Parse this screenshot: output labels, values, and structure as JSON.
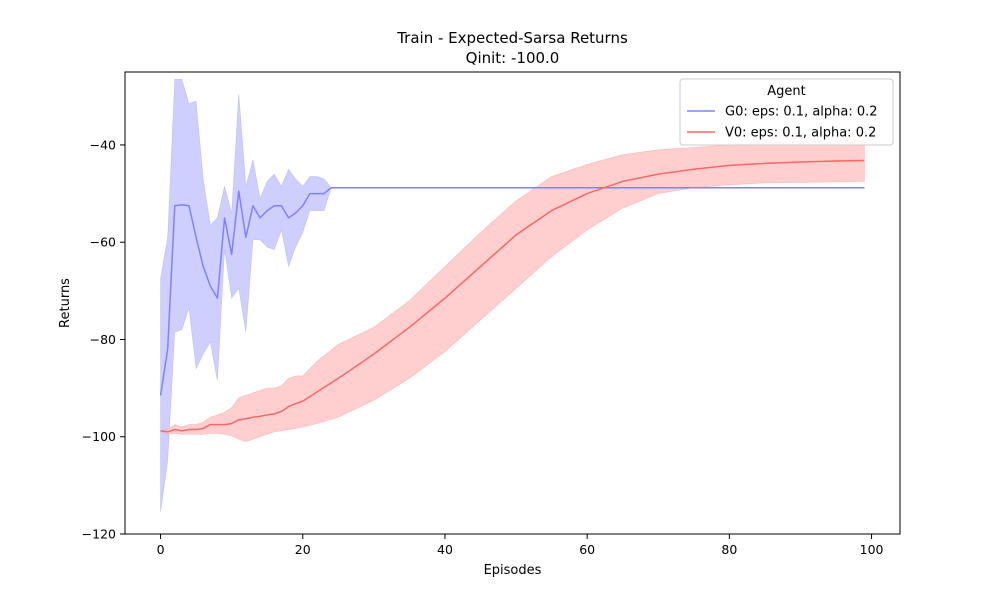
{
  "chart_data": {
    "type": "line",
    "title": "Train - Expected-Sarsa Returns",
    "subtitle": "Qinit: -100.0",
    "xlabel": "Episodes",
    "ylabel": "Returns",
    "xlim": [
      -5,
      104
    ],
    "ylim": [
      -120,
      -25
    ],
    "xticks": [
      0,
      20,
      40,
      60,
      80,
      100
    ],
    "yticks": [
      -120,
      -100,
      -80,
      -60,
      -40
    ],
    "grid": false,
    "legend": {
      "title": "Agent",
      "placement": "top-right"
    },
    "series": [
      {
        "name": "G0: eps: 0.1, alpha: 0.2",
        "color": "#8080ff",
        "band_color": "#ccccff",
        "x": [
          0,
          1,
          2,
          3,
          4,
          5,
          6,
          7,
          8,
          9,
          10,
          11,
          12,
          13,
          14,
          15,
          16,
          17,
          18,
          19,
          20,
          21,
          22,
          23,
          24,
          25,
          30,
          40,
          50,
          60,
          70,
          80,
          90,
          99
        ],
        "mean": [
          -91.5,
          -82,
          -52.5,
          -52.3,
          -52.5,
          -59,
          -65,
          -69,
          -71.5,
          -55,
          -62.5,
          -49.5,
          -59,
          -52.5,
          -55,
          -53.5,
          -52.5,
          -52.5,
          -55,
          -54,
          -52.5,
          -50,
          -50,
          -50,
          -48.8,
          -48.8,
          -48.8,
          -48.8,
          -48.8,
          -48.8,
          -48.8,
          -48.8,
          -48.8,
          -48.8
        ],
        "upper": [
          -67.5,
          -59,
          -26.5,
          -26.5,
          -31.5,
          -31,
          -47,
          -56.5,
          -55,
          -48.5,
          -54,
          -29.5,
          -48.5,
          -43,
          -51,
          -47.5,
          -46,
          -48.5,
          -45,
          -47,
          -48.5,
          -46.5,
          -46.5,
          -47,
          -48.8,
          -48.8,
          -48.8,
          -48.8,
          -48.8,
          -48.8,
          -48.8,
          -48.8,
          -48.8,
          -48.8
        ],
        "lower": [
          -115.5,
          -105,
          -78.5,
          -78,
          -73.5,
          -86,
          -83,
          -80.5,
          -88.5,
          -61.5,
          -71.5,
          -69.5,
          -78.5,
          -59.5,
          -59.5,
          -61,
          -61.5,
          -57.5,
          -65,
          -61,
          -58,
          -53.5,
          -53.5,
          -53.5,
          -48.8,
          -48.8,
          -48.8,
          -48.8,
          -48.8,
          -48.8,
          -48.8,
          -48.8,
          -48.8,
          -48.8
        ]
      },
      {
        "name": "V0: eps: 0.1, alpha: 0.2",
        "color": "#ff6666",
        "band_color": "#ffcccc",
        "x": [
          0,
          1,
          2,
          3,
          4,
          5,
          6,
          7,
          8,
          9,
          10,
          11,
          12,
          13,
          14,
          15,
          16,
          17,
          18,
          19,
          20,
          22,
          25,
          30,
          35,
          40,
          45,
          50,
          55,
          60,
          65,
          70,
          75,
          80,
          85,
          90,
          95,
          99
        ],
        "mean": [
          -98.8,
          -99,
          -98.5,
          -98.8,
          -98.5,
          -98.5,
          -98.3,
          -97.5,
          -97.5,
          -97.5,
          -97.3,
          -96.5,
          -96.3,
          -96,
          -95.8,
          -95.5,
          -95.3,
          -94.8,
          -93.8,
          -93.2,
          -92.7,
          -90.8,
          -88,
          -83,
          -77.5,
          -71.5,
          -65,
          -58.5,
          -53.5,
          -50,
          -47.5,
          -46,
          -45,
          -44.2,
          -43.8,
          -43.5,
          -43.3,
          -43.2
        ],
        "upper": [
          -98.8,
          -98.5,
          -97.5,
          -98,
          -97.5,
          -97.5,
          -97,
          -96,
          -95.5,
          -95,
          -94,
          -92,
          -91.5,
          -91,
          -90.5,
          -90,
          -90,
          -89.5,
          -88,
          -87.5,
          -87.5,
          -84.5,
          -81,
          -77.5,
          -72,
          -65,
          -58,
          -51.5,
          -46.5,
          -44,
          -42,
          -41,
          -40.5,
          -40,
          -39.5,
          -39.3,
          -39.1,
          -39
        ],
        "lower": [
          -98.8,
          -99.5,
          -99.3,
          -99.5,
          -99.5,
          -99.5,
          -99.5,
          -99.3,
          -99.3,
          -99.5,
          -99.8,
          -100.5,
          -101,
          -100.5,
          -100,
          -99.5,
          -99,
          -98.8,
          -98.5,
          -98.3,
          -98,
          -97.3,
          -96,
          -92.5,
          -88,
          -82.5,
          -76,
          -69.5,
          -63,
          -57.5,
          -53,
          -50,
          -48.8,
          -48.2,
          -47.8,
          -47.7,
          -47.6,
          -47.5
        ]
      }
    ]
  }
}
